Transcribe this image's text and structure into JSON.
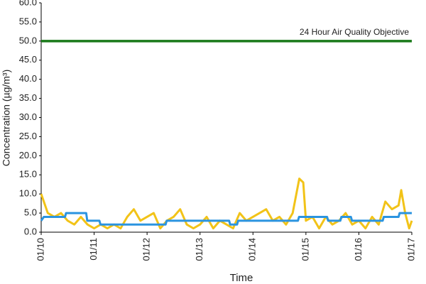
{
  "chart_data": {
    "type": "line",
    "y_label": "Concentration (µg/m³)",
    "x_label": "Time",
    "annotation": "24 Hour Air Quality Objective",
    "xlim": [
      0,
      7
    ],
    "xticks": [
      {
        "value": 0,
        "label": "01/10"
      },
      {
        "value": 1,
        "label": "01/11"
      },
      {
        "value": 2,
        "label": "01/12"
      },
      {
        "value": 3,
        "label": "01/13"
      },
      {
        "value": 4,
        "label": "01/14"
      },
      {
        "value": 5,
        "label": "01/15"
      },
      {
        "value": 6,
        "label": "01/16"
      },
      {
        "value": 7,
        "label": "01/17"
      }
    ],
    "ylim": [
      0,
      60
    ],
    "yticks": [
      {
        "value": 0,
        "label": "0.0"
      },
      {
        "value": 5,
        "label": "5.0"
      },
      {
        "value": 10,
        "label": "10.0"
      },
      {
        "value": 15,
        "label": "15.0"
      },
      {
        "value": 20,
        "label": "20.0"
      },
      {
        "value": 25,
        "label": "25.0"
      },
      {
        "value": 30,
        "label": "30.0"
      },
      {
        "value": 35,
        "label": "35.0"
      },
      {
        "value": 40,
        "label": "40.0"
      },
      {
        "value": 45,
        "label": "45.0"
      },
      {
        "value": 50,
        "label": "50.0"
      },
      {
        "value": 55,
        "label": "55.0"
      },
      {
        "value": 60,
        "label": "60.0"
      }
    ],
    "grid": false,
    "series": [
      {
        "color": "#f2c318",
        "width": 3,
        "x": [
          0,
          0.125,
          0.25,
          0.375,
          0.5,
          0.625,
          0.75,
          0.875,
          1,
          1.125,
          1.25,
          1.375,
          1.5,
          1.625,
          1.75,
          1.875,
          2,
          2.125,
          2.25,
          2.375,
          2.5,
          2.625,
          2.75,
          2.875,
          3,
          3.125,
          3.25,
          3.375,
          3.5,
          3.625,
          3.75,
          3.875,
          4,
          4.125,
          4.25,
          4.375,
          4.5,
          4.625,
          4.75,
          4.875,
          4.95,
          5,
          5.125,
          5.25,
          5.375,
          5.5,
          5.625,
          5.75,
          5.875,
          6,
          6.125,
          6.25,
          6.375,
          6.5,
          6.625,
          6.75,
          6.8,
          6.875,
          6.95,
          7
        ],
        "values": [
          10,
          5,
          4,
          5,
          3,
          2,
          4,
          2,
          1,
          2,
          1,
          2,
          1,
          4,
          6,
          3,
          4,
          5,
          1,
          3,
          4,
          6,
          2,
          1,
          2,
          4,
          1,
          3,
          2,
          1,
          5,
          3,
          4,
          5,
          6,
          3,
          4,
          2,
          5,
          14,
          13,
          3,
          4,
          1,
          4,
          2,
          3,
          5,
          2,
          3,
          1,
          4,
          2,
          8,
          6,
          7,
          11,
          5,
          1,
          3
        ]
      },
      {
        "color": "#2b94e0",
        "width": 3,
        "x": [
          0,
          0.05,
          0.45,
          0.47,
          0.85,
          0.87,
          1.1,
          1.12,
          2.35,
          2.37,
          3.55,
          3.57,
          3.7,
          3.72,
          4.85,
          4.87,
          5.4,
          5.42,
          5.65,
          5.67,
          5.85,
          5.87,
          6.45,
          6.47,
          6.75,
          6.77,
          7
        ],
        "values": [
          3,
          4,
          4,
          5,
          5,
          3,
          3,
          2,
          2,
          3,
          3,
          2,
          2,
          3,
          3,
          4,
          4,
          3,
          3,
          4,
          4,
          3,
          3,
          4,
          4,
          5,
          5
        ]
      },
      {
        "color": "#1a7a1a",
        "width": 3.5,
        "x": [
          0,
          7
        ],
        "values": [
          50,
          50
        ]
      }
    ]
  }
}
